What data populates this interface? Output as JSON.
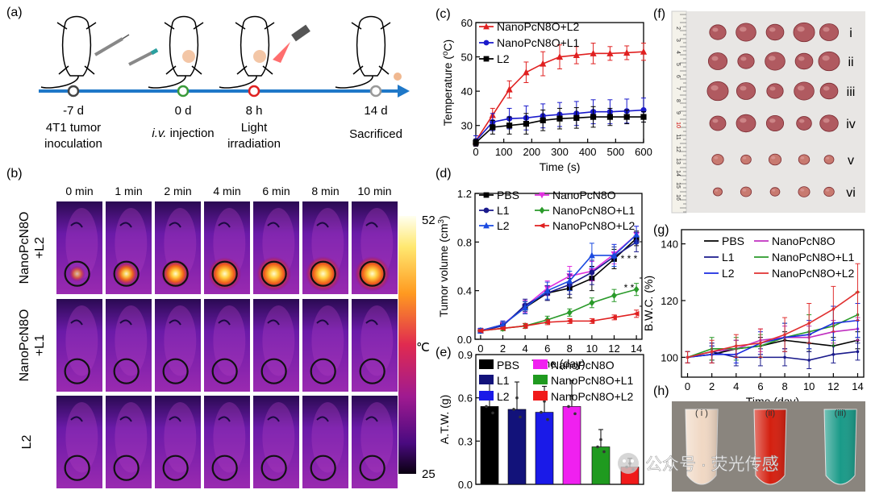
{
  "panel_labels": [
    "(a)",
    "(b)",
    "(c)",
    "(d)",
    "(e)",
    "(f)",
    "(g)",
    "(h)"
  ],
  "timeline": {
    "events": [
      {
        "time": "-7 d",
        "line1": "4T1 tumor",
        "line2": "inoculation",
        "color": "#444444"
      },
      {
        "time": "0 d",
        "line1_italic": "i.v.",
        "line1_rest": " injection",
        "line2": "",
        "color": "#3a9a3a"
      },
      {
        "time": "8 h",
        "line1": "Light",
        "line2": "irradiation",
        "color": "#e02020"
      },
      {
        "time": "14 d",
        "line1": "Sacrificed",
        "line2": "",
        "color": "#999999"
      }
    ],
    "arrow_color": "#1f78c8"
  },
  "thermal": {
    "time_labels": [
      "0 min",
      "1 min",
      "2 min",
      "4 min",
      "6 min",
      "8 min",
      "10 min"
    ],
    "row_labels": [
      {
        "line1": "NanoPcN8O",
        "line2": "+L2"
      },
      {
        "line1": "NanoPcN8O",
        "line2": "+L1"
      },
      {
        "line1": "L2",
        "line2": ""
      }
    ],
    "hotspot_intensity": [
      [
        0.25,
        0.55,
        0.75,
        0.92,
        0.98,
        1.0,
        1.0
      ],
      [
        0.05,
        0.06,
        0.07,
        0.07,
        0.08,
        0.08,
        0.08
      ],
      [
        0.04,
        0.05,
        0.05,
        0.06,
        0.06,
        0.06,
        0.06
      ]
    ],
    "colorbar_max": "52",
    "colorbar_min": "25",
    "unit": "℃"
  },
  "chart_data": [
    {
      "id": "c",
      "type": "line",
      "xlabel": "Time (s)",
      "ylabel": "Temperature (",
      "ylabel_sup": "o",
      "ylabel_end": "C)",
      "xlim": [
        0,
        600
      ],
      "ylim": [
        25,
        60
      ],
      "xticks": [
        0,
        100,
        200,
        300,
        400,
        500,
        600
      ],
      "yticks": [
        30,
        40,
        50,
        60
      ],
      "x": [
        0,
        60,
        120,
        180,
        240,
        300,
        360,
        420,
        480,
        540,
        600
      ],
      "series": [
        {
          "name": "NanoPcN8O+L2",
          "color": "#e02020",
          "marker": "triangle",
          "values": [
            25.5,
            33,
            40.5,
            45.5,
            48,
            50,
            50.5,
            51,
            51,
            51.2,
            51.5
          ],
          "err": [
            1.5,
            2,
            2.5,
            3,
            3.5,
            3.5,
            2.5,
            3,
            2,
            2,
            2.5
          ]
        },
        {
          "name": "NanoPcN8O+L1",
          "color": "#1a1acc",
          "marker": "circle",
          "values": [
            25.5,
            31,
            32,
            32.2,
            32.8,
            33.2,
            33.5,
            34,
            34,
            34.2,
            34.5
          ],
          "err": [
            1.5,
            2.5,
            3,
            3.5,
            3.5,
            3.5,
            3.5,
            3.5,
            3.5,
            3.5,
            3.5
          ]
        },
        {
          "name": "L2",
          "color": "#000000",
          "marker": "square",
          "values": [
            25,
            29.5,
            30,
            30.5,
            31.5,
            32,
            32.2,
            32.5,
            32.5,
            32.5,
            32.5
          ],
          "err": [
            1,
            2,
            2.5,
            3,
            3,
            3,
            3,
            3,
            2.5,
            2,
            1.5
          ]
        }
      ]
    },
    {
      "id": "d",
      "type": "line",
      "xlabel": "Time (day)",
      "ylabel": "Tumor volume (cm",
      "ylabel_sup": "3",
      "ylabel_end": ")",
      "xlim": [
        -0.5,
        14.5
      ],
      "ylim": [
        0,
        1.2
      ],
      "xticks": [
        0,
        2,
        4,
        6,
        8,
        10,
        12,
        14
      ],
      "yticks": [
        0.0,
        0.4,
        0.8,
        1.2
      ],
      "ytick_labels": [
        "0.0",
        "0.4",
        "0.8",
        "1.2"
      ],
      "x": [
        0,
        2,
        4,
        6,
        8,
        10,
        12,
        14
      ],
      "series": [
        {
          "name": "PBS",
          "color": "#000000",
          "marker": "square",
          "values": [
            0.07,
            0.12,
            0.26,
            0.38,
            0.42,
            0.5,
            0.66,
            0.83
          ],
          "err": [
            0.02,
            0.03,
            0.05,
            0.06,
            0.08,
            0.1,
            0.08,
            0.06
          ]
        },
        {
          "name": "NanoPcN8O",
          "color": "#e030e0",
          "marker": "tridown",
          "values": [
            0.07,
            0.12,
            0.27,
            0.42,
            0.52,
            0.56,
            0.7,
            0.86
          ],
          "err": [
            0.02,
            0.03,
            0.05,
            0.06,
            0.08,
            0.08,
            0.08,
            0.07
          ]
        },
        {
          "name": "L1",
          "color": "#1a1a8c",
          "marker": "circle",
          "values": [
            0.07,
            0.11,
            0.28,
            0.38,
            0.45,
            0.55,
            0.68,
            0.8
          ],
          "err": [
            0.02,
            0.03,
            0.05,
            0.06,
            0.08,
            0.1,
            0.08,
            0.08
          ]
        },
        {
          "name": "NanoPcN8O+L1",
          "color": "#2a9a2a",
          "marker": "diamond",
          "values": [
            0.07,
            0.09,
            0.11,
            0.16,
            0.22,
            0.3,
            0.36,
            0.41
          ],
          "err": [
            0.01,
            0.02,
            0.02,
            0.03,
            0.03,
            0.04,
            0.05,
            0.05
          ]
        },
        {
          "name": "L2",
          "color": "#1a4ae0",
          "marker": "triangle",
          "values": [
            0.07,
            0.12,
            0.26,
            0.4,
            0.48,
            0.69,
            0.69,
            0.86
          ],
          "err": [
            0.02,
            0.03,
            0.05,
            0.07,
            0.08,
            0.1,
            0.09,
            0.07
          ]
        },
        {
          "name": "NanoPcN8O+L2",
          "color": "#e02020",
          "marker": "tri-left",
          "values": [
            0.07,
            0.09,
            0.11,
            0.14,
            0.15,
            0.15,
            0.18,
            0.21
          ],
          "err": [
            0.01,
            0.01,
            0.02,
            0.02,
            0.02,
            0.02,
            0.02,
            0.03
          ]
        }
      ],
      "significance": [
        "* * *",
        "* *"
      ]
    },
    {
      "id": "e",
      "type": "bar",
      "ylabel": "A.T.W. (g)",
      "ylim": [
        0,
        0.9
      ],
      "yticks": [
        0.0,
        0.3,
        0.6,
        0.9
      ],
      "ytick_labels": [
        "0.0",
        "0.3",
        "0.6",
        "0.9"
      ],
      "categories": [
        "PBS",
        "L1",
        "L2",
        "NanoPcN8O",
        "NanoPcN8O+L1",
        "NanoPcN8O+L2"
      ],
      "values": [
        0.54,
        0.52,
        0.5,
        0.54,
        0.26,
        0.12
      ],
      "err": [
        0.16,
        0.19,
        0.18,
        0.18,
        0.12,
        0.06
      ],
      "colors": [
        "#000000",
        "#12127a",
        "#1a1ae8",
        "#f020f0",
        "#1f9a1f",
        "#f01a1a"
      ]
    },
    {
      "id": "g",
      "type": "line",
      "xlabel": "Time (day)",
      "ylabel": "B.W.C. (%)",
      "xlim": [
        -0.5,
        14.5
      ],
      "ylim": [
        93,
        145
      ],
      "xticks": [
        0,
        2,
        4,
        6,
        8,
        10,
        12,
        14
      ],
      "yticks": [
        100,
        120,
        140
      ],
      "x": [
        0,
        2,
        4,
        6,
        8,
        10,
        12,
        14
      ],
      "series": [
        {
          "name": "PBS",
          "color": "#000000",
          "values": [
            100,
            101,
            103,
            104,
            106,
            105,
            104,
            106
          ],
          "err": [
            2,
            3,
            3,
            3,
            3,
            3,
            3,
            3
          ]
        },
        {
          "name": "NanoPcN8O",
          "color": "#c030c0",
          "values": [
            100,
            102,
            103,
            106,
            107,
            107,
            109,
            110
          ],
          "err": [
            2,
            3,
            3,
            4,
            4,
            4,
            4,
            4
          ]
        },
        {
          "name": "L1",
          "color": "#1a1a8c",
          "values": [
            100,
            102,
            100,
            100,
            100,
            99,
            101,
            102
          ],
          "err": [
            2,
            3,
            3,
            3,
            3,
            3,
            3,
            3
          ]
        },
        {
          "name": "NanoPcN8O+L1",
          "color": "#2a9a2a",
          "values": [
            100,
            103,
            103,
            104,
            107,
            109,
            111,
            115
          ],
          "err": [
            2,
            4,
            4,
            4,
            5,
            6,
            7,
            8
          ]
        },
        {
          "name": "L2",
          "color": "#1a2ae0",
          "values": [
            100,
            101,
            101,
            105,
            107,
            108,
            112,
            113
          ],
          "err": [
            2,
            3,
            3,
            4,
            5,
            5,
            6,
            6
          ]
        },
        {
          "name": "NanoPcN8O+L2",
          "color": "#e03030",
          "values": [
            100,
            102,
            104,
            105,
            108,
            112,
            117,
            123
          ],
          "err": [
            2,
            4,
            4,
            5,
            6,
            7,
            8,
            10
          ]
        }
      ]
    }
  ],
  "tumor_photo": {
    "row_labels": [
      "i",
      "ii",
      "iii",
      "iv",
      "v",
      "vi"
    ],
    "ruler_numbers": [
      "2",
      "3",
      "4",
      "5",
      "6",
      "7",
      "8",
      "9",
      "10",
      "11",
      "12",
      "13",
      "14",
      "15",
      "16"
    ]
  },
  "vials": {
    "labels": [
      "( i )",
      "(ii)",
      "(iii)"
    ],
    "colors": [
      "#f0d8c4",
      "#d42010",
      "#1a9a88"
    ]
  },
  "watermark": "公众号 · 荧光传感"
}
